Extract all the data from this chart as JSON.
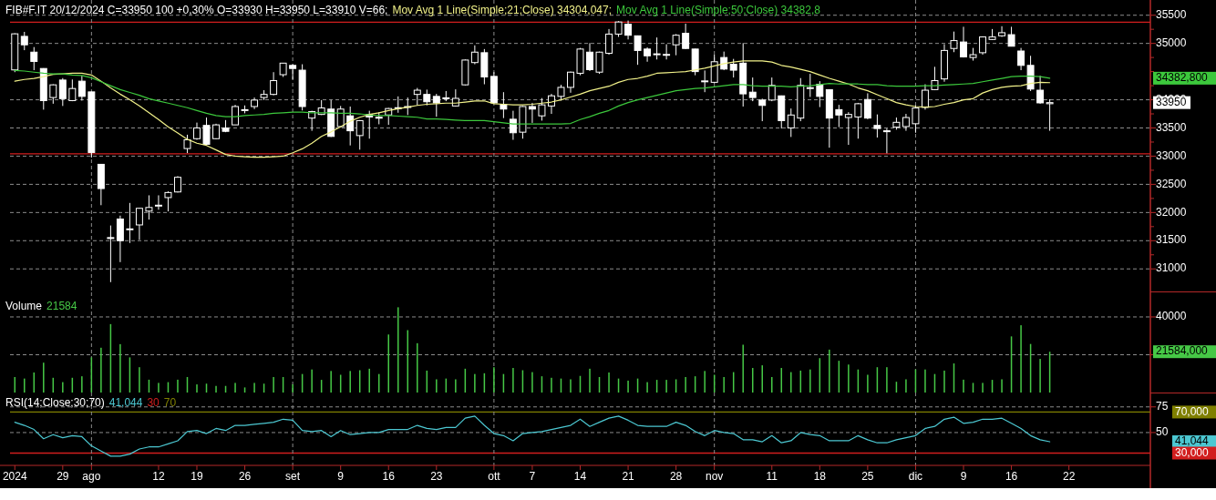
{
  "chart_data": [
    {
      "type": "candlestick",
      "title": "FIB#F.IT 20/12/2024 C=33950 100 +0,30% O=33930 H=33950 L=33910 V=66;",
      "categories": [
        "2024",
        null,
        null,
        null,
        null,
        "29",
        null,
        null,
        "ago",
        null,
        null,
        null,
        null,
        null,
        null,
        "12",
        null,
        null,
        null,
        "19",
        null,
        null,
        null,
        null,
        "26",
        null,
        null,
        null,
        null,
        "set",
        null,
        null,
        null,
        null,
        "9",
        null,
        null,
        null,
        null,
        "16",
        null,
        null,
        null,
        null,
        "23",
        null,
        null,
        null,
        null,
        null,
        "ott",
        null,
        null,
        null,
        "7",
        null,
        null,
        null,
        null,
        "14",
        null,
        null,
        null,
        null,
        "21",
        null,
        null,
        null,
        null,
        "28",
        null,
        null,
        null,
        "nov",
        null,
        null,
        null,
        null,
        null,
        "11",
        null,
        null,
        null,
        null,
        "18",
        null,
        null,
        null,
        null,
        "25",
        null,
        null,
        null,
        null,
        "dic",
        null,
        null,
        null,
        null,
        "9",
        null,
        null,
        null,
        null,
        "16",
        null,
        null,
        null,
        null,
        null,
        "22",
        null,
        null,
        null,
        null,
        null,
        null,
        null,
        null
      ],
      "series": [
        {
          "color": "#ffffff",
          "ohlc": [
            [
              34530,
              35180,
              34490,
              35170
            ],
            [
              35125,
              35205,
              34880,
              34975
            ],
            [
              34845,
              34935,
              34525,
              34680
            ],
            [
              34555,
              34560,
              33825,
              33985
            ],
            [
              34040,
              34275,
              33930,
              34265
            ],
            [
              34350,
              34385,
              33890,
              34020
            ],
            [
              33985,
              34360,
              33975,
              34200
            ],
            [
              34330,
              34425,
              33985,
              34060
            ],
            [
              34140,
              34145,
              32975,
              33065
            ],
            [
              32855,
              32860,
              32130,
              32425
            ],
            [
              31555,
              31770,
              30765,
              31550
            ],
            [
              31885,
              31945,
              31120,
              31500
            ],
            [
              31705,
              32170,
              31460,
              31710
            ],
            [
              31780,
              32085,
              31515,
              32075
            ],
            [
              32025,
              32305,
              31875,
              32090
            ],
            [
              32120,
              32305,
              32050,
              32130
            ],
            [
              32265,
              32375,
              32020,
              32355
            ],
            [
              32365,
              32645,
              32355,
              32625
            ],
            [
              33135,
              33380,
              33055,
              33290
            ],
            [
              33310,
              33595,
              33290,
              33500
            ],
            [
              33545,
              33685,
              33200,
              33210
            ],
            [
              33310,
              33575,
              33300,
              33555
            ],
            [
              33500,
              33640,
              33425,
              33440
            ],
            [
              33555,
              33910,
              33555,
              33880
            ],
            [
              33820,
              33900,
              33760,
              33825
            ],
            [
              33880,
              34040,
              33835,
              33995
            ],
            [
              34040,
              34170,
              33995,
              34095
            ],
            [
              34095,
              34490,
              34080,
              34340
            ],
            [
              34445,
              34650,
              34405,
              34650
            ],
            [
              34610,
              34630,
              34360,
              34555
            ],
            [
              34525,
              34630,
              33810,
              33880
            ],
            [
              33675,
              33805,
              33450,
              33790
            ],
            [
              33740,
              33995,
              33730,
              33855
            ],
            [
              33835,
              33995,
              33340,
              33350
            ],
            [
              33525,
              33890,
              33515,
              33835
            ],
            [
              33715,
              33880,
              33190,
              33450
            ],
            [
              33365,
              33640,
              33115,
              33630
            ],
            [
              33740,
              33805,
              33310,
              33695
            ],
            [
              33690,
              33780,
              33565,
              33685
            ],
            [
              33730,
              33855,
              33555,
              33845
            ],
            [
              33860,
              34060,
              33770,
              33855
            ],
            [
              33870,
              34040,
              33730,
              33880
            ],
            [
              34095,
              34210,
              33900,
              34170
            ],
            [
              34095,
              34180,
              33900,
              33965
            ],
            [
              34060,
              34105,
              33700,
              33945
            ],
            [
              34030,
              34155,
              33975,
              34035
            ],
            [
              33890,
              34185,
              33880,
              34025
            ],
            [
              34265,
              34715,
              34255,
              34705
            ],
            [
              34660,
              34965,
              34630,
              34845
            ],
            [
              34835,
              34900,
              34275,
              34405
            ],
            [
              34415,
              34490,
              33930,
              33945
            ],
            [
              33915,
              34135,
              33675,
              33835
            ],
            [
              33655,
              33805,
              33290,
              33415
            ],
            [
              33425,
              33890,
              33310,
              33880
            ],
            [
              33880,
              33945,
              33590,
              33835
            ],
            [
              33715,
              34030,
              33630,
              33910
            ],
            [
              33890,
              34105,
              33750,
              34070
            ],
            [
              34060,
              34265,
              33985,
              34220
            ],
            [
              34220,
              34500,
              34125,
              34490
            ],
            [
              34470,
              34920,
              34435,
              34900
            ],
            [
              34845,
              35005,
              34510,
              34535
            ],
            [
              34490,
              34855,
              34460,
              34845
            ],
            [
              34825,
              35255,
              34800,
              35165
            ],
            [
              35165,
              35395,
              35115,
              35380
            ],
            [
              35340,
              35405,
              35070,
              35145
            ],
            [
              35135,
              35140,
              34620,
              34875
            ],
            [
              34900,
              34930,
              34675,
              34780
            ],
            [
              34810,
              35105,
              34715,
              34815
            ],
            [
              34800,
              34985,
              34715,
              34805
            ],
            [
              34975,
              35165,
              34790,
              35145
            ],
            [
              35180,
              35350,
              34900,
              34910
            ],
            [
              34900,
              34905,
              34435,
              34500
            ],
            [
              34330,
              34520,
              34135,
              34335
            ],
            [
              34310,
              34800,
              34295,
              34675
            ],
            [
              34750,
              34855,
              34525,
              34545
            ],
            [
              34630,
              34725,
              34395,
              34525
            ],
            [
              34650,
              35005,
              33880,
              34105
            ],
            [
              34135,
              34395,
              33975,
              34040
            ],
            [
              33995,
              34020,
              33620,
              33900
            ],
            [
              33995,
              34395,
              33975,
              34255
            ],
            [
              34070,
              34075,
              33490,
              33630
            ],
            [
              33500,
              33845,
              33340,
              33730
            ],
            [
              33675,
              34385,
              33620,
              34255
            ],
            [
              34210,
              34460,
              34050,
              34215
            ],
            [
              34275,
              34330,
              33870,
              34060
            ],
            [
              34180,
              34185,
              33150,
              33675
            ],
            [
              33825,
              33910,
              33515,
              33730
            ],
            [
              33685,
              33780,
              33200,
              33740
            ],
            [
              33695,
              33945,
              33310,
              33930
            ],
            [
              34005,
              34115,
              33655,
              33675
            ],
            [
              33545,
              33740,
              33330,
              33490
            ],
            [
              33450,
              33490,
              33050,
              33445
            ],
            [
              33515,
              33685,
              33470,
              33600
            ],
            [
              33525,
              33750,
              33450,
              33685
            ],
            [
              33575,
              33900,
              33415,
              33855
            ],
            [
              33865,
              34275,
              33825,
              34170
            ],
            [
              34180,
              34585,
              34170,
              34340
            ],
            [
              34370,
              34985,
              34320,
              34875
            ],
            [
              34910,
              35210,
              34845,
              35050
            ],
            [
              35025,
              35295,
              34750,
              34760
            ],
            [
              34750,
              34920,
              34695,
              34800
            ],
            [
              34835,
              35125,
              34800,
              35115
            ],
            [
              35070,
              35255,
              35060,
              35115
            ],
            [
              35135,
              35305,
              35115,
              35190
            ],
            [
              35155,
              35295,
              34950,
              34950
            ],
            [
              34865,
              34920,
              34525,
              34610
            ],
            [
              34610,
              34780,
              34155,
              34190
            ],
            [
              34170,
              34425,
              33930,
              33945
            ],
            [
              33930,
              34010,
              33450,
              33950
            ],
            null,
            null,
            null,
            null,
            null,
            null,
            null,
            null,
            null,
            null
          ]
        },
        {
          "type": "line",
          "name": "Mov Avg 1 Line(Simple;21;Close) 34304,047;",
          "color": "#f2f28a",
          "values": [
            34330,
            34360,
            34380,
            34410,
            34450,
            34460,
            34470,
            34470,
            34440,
            34330,
            34210,
            34100,
            34000,
            33890,
            33770,
            33650,
            33520,
            33410,
            33300,
            33230,
            33190,
            33110,
            33030,
            33000,
            32990,
            32980,
            32980,
            32990,
            33000,
            33060,
            33130,
            33230,
            33350,
            33430,
            33520,
            33620,
            33690,
            33740,
            33770,
            33810,
            33840,
            33870,
            33900,
            33920,
            33930,
            33940,
            33940,
            33960,
            33980,
            33980,
            33930,
            33920,
            33910,
            33910,
            33920,
            33940,
            33960,
            34000,
            34050,
            34100,
            34160,
            34200,
            34240,
            34310,
            34360,
            34380,
            34420,
            34470,
            34480,
            34490,
            34500,
            34530,
            34560,
            34600,
            34640,
            34670,
            34690,
            34690,
            34690,
            34670,
            34610,
            34580,
            34540,
            34500,
            34440,
            34380,
            34330,
            34280,
            34210,
            34160,
            34090,
            34020,
            33950,
            33910,
            33880,
            33870,
            33880,
            33920,
            33950,
            34000,
            34020,
            34120,
            34180,
            34220,
            34240,
            34250,
            34290,
            34310,
            34304.047,
            null,
            null,
            null,
            null,
            null,
            null,
            null,
            null,
            null,
            null
          ]
        },
        {
          "type": "line",
          "name": "Mov Avg 1 Line(Simple;50;Close) 34382,8",
          "color": "#3cc83c",
          "values": [
            34520,
            34510,
            34490,
            34470,
            34460,
            34460,
            34440,
            34430,
            34390,
            34320,
            34250,
            34180,
            34130,
            34080,
            34020,
            33980,
            33940,
            33900,
            33860,
            33810,
            33760,
            33720,
            33700,
            33700,
            33720,
            33730,
            33740,
            33760,
            33770,
            33780,
            33780,
            33770,
            33770,
            33770,
            33760,
            33760,
            33750,
            33730,
            33720,
            33720,
            33710,
            33700,
            33690,
            33660,
            33660,
            33650,
            33640,
            33630,
            33630,
            33630,
            33610,
            33590,
            33570,
            33570,
            33570,
            33570,
            33570,
            33570,
            33580,
            33650,
            33700,
            33760,
            33810,
            33890,
            33950,
            34000,
            34040,
            34080,
            34120,
            34160,
            34180,
            34200,
            34210,
            34230,
            34250,
            34270,
            34270,
            34250,
            34240,
            34240,
            34240,
            34230,
            34240,
            34250,
            34270,
            34290,
            34280,
            34280,
            34280,
            34270,
            34270,
            34250,
            34240,
            34240,
            34240,
            34250,
            34250,
            34260,
            34270,
            34280,
            34290,
            34320,
            34350,
            34380,
            34410,
            34420,
            34420,
            34410,
            34382.8,
            null,
            null,
            null,
            null,
            null,
            null,
            null,
            null,
            null,
            null
          ]
        }
      ],
      "ylim": [
        30600,
        35770
      ],
      "yticks": [
        31000,
        {
          "value": 31250,
          "label": null
        },
        31500,
        {
          "value": 31750,
          "label": null
        },
        32000,
        {
          "value": 32250,
          "label": null
        },
        32500,
        {
          "value": 32750,
          "label": null
        },
        33000,
        {
          "value": 33250,
          "label": null
        },
        33500,
        {
          "value": 33750,
          "label": null
        },
        34000,
        {
          "value": 34250,
          "label": null
        },
        {
          "value": 34500,
          "label": null
        },
        {
          "value": 34750,
          "label": null
        },
        35000,
        {
          "value": 35250,
          "label": null
        },
        35500
      ],
      "grid": "y",
      "legend": "top left",
      "tick_labels": "y",
      "ref_lines": [
        {
          "axis": "y",
          "value": 35375,
          "color": "#d21e1e",
          "line_style": "solid"
        },
        {
          "axis": "y",
          "value": 33040,
          "color": "#d21e1e",
          "line_style": "solid"
        },
        {
          "axis": "x",
          "value": "ago",
          "color": "#8c8c8c",
          "line_style": "dashed"
        },
        {
          "axis": "x",
          "value": "set",
          "color": "#8c8c8c",
          "line_style": "dashed"
        },
        {
          "axis": "x",
          "value": "ott",
          "color": "#8c8c8c",
          "line_style": "dashed"
        },
        {
          "axis": "x",
          "value": "nov",
          "color": "#8c8c8c",
          "line_style": "dashed"
        },
        {
          "axis": "x",
          "value": "dic",
          "color": "#8c8c8c",
          "line_style": "dashed"
        }
      ],
      "annotations": [
        "34382,800",
        "33950"
      ]
    },
    {
      "type": "bar",
      "title": "Volume",
      "categories": [
        "2024",
        null,
        null,
        null,
        null,
        "29",
        null,
        null,
        "ago",
        null,
        null,
        null,
        null,
        null,
        null,
        "12",
        null,
        null,
        null,
        "19",
        null,
        null,
        null,
        null,
        "26",
        null,
        null,
        null,
        null,
        "set",
        null,
        null,
        null,
        null,
        "9",
        null,
        null,
        null,
        null,
        "16",
        null,
        null,
        null,
        null,
        "23",
        null,
        null,
        null,
        null,
        null,
        "ott",
        null,
        null,
        null,
        "7",
        null,
        null,
        null,
        null,
        "14",
        null,
        null,
        null,
        null,
        "21",
        null,
        null,
        null,
        null,
        "28",
        null,
        null,
        null,
        "nov",
        null,
        null,
        null,
        null,
        null,
        "11",
        null,
        null,
        null,
        null,
        "18",
        null,
        null,
        null,
        null,
        "25",
        null,
        null,
        null,
        null,
        "dic",
        null,
        null,
        null,
        null,
        "9",
        null,
        null,
        null,
        null,
        "16",
        null,
        null,
        null,
        null,
        null,
        "22",
        null,
        null,
        null,
        null,
        null,
        null,
        null,
        null
      ],
      "series": [
        {
          "name": "21584",
          "color": "#46c846",
          "values": [
            8200,
            7400,
            10600,
            15800,
            7800,
            5500,
            7800,
            8600,
            18600,
            23700,
            36200,
            25600,
            18600,
            13400,
            6800,
            5100,
            5500,
            6800,
            8200,
            4300,
            4700,
            3500,
            3500,
            5100,
            2700,
            5100,
            4700,
            8200,
            8200,
            4300,
            9800,
            12200,
            6700,
            11400,
            9400,
            11400,
            11800,
            12600,
            9800,
            30700,
            45100,
            33000,
            26100,
            11600,
            7000,
            7400,
            7000,
            12600,
            9800,
            10200,
            13400,
            9800,
            13000,
            11800,
            10800,
            8600,
            7800,
            7400,
            7000,
            8800,
            12600,
            8200,
            10600,
            7400,
            6300,
            7400,
            5500,
            6700,
            6700,
            7000,
            8200,
            8600,
            11400,
            9400,
            8200,
            10800,
            25300,
            13000,
            14400,
            8200,
            13000,
            10800,
            11600,
            12200,
            18200,
            22700,
            16800,
            14800,
            12200,
            9400,
            13400,
            13400,
            5700,
            7000,
            12200,
            12200,
            9800,
            11600,
            15400,
            6800,
            5100,
            5100,
            6700,
            7000,
            29700,
            35600,
            25700,
            17800,
            21584,
            null,
            null,
            null,
            null,
            null,
            null,
            null,
            null,
            null,
            null
          ]
        }
      ],
      "ylim": [
        0,
        53000
      ],
      "yticks": [
        20000,
        40000
      ],
      "grid": "y",
      "legend": "top left",
      "tick_labels": "y",
      "ref_lines": [
        {
          "axis": "x",
          "value": "ago",
          "color": "#8c8c8c",
          "line_style": "dashed"
        },
        {
          "axis": "x",
          "value": "set",
          "color": "#8c8c8c",
          "line_style": "dashed"
        },
        {
          "axis": "x",
          "value": "ott",
          "color": "#8c8c8c",
          "line_style": "dashed"
        },
        {
          "axis": "x",
          "value": "nov",
          "color": "#8c8c8c",
          "line_style": "dashed"
        },
        {
          "axis": "x",
          "value": "dic",
          "color": "#8c8c8c",
          "line_style": "dashed"
        }
      ],
      "annotations": [
        "21584,000"
      ]
    },
    {
      "type": "line",
      "title": "RSI(14;Close;30;70)",
      "categories": [
        "2024",
        null,
        null,
        null,
        null,
        "29",
        null,
        null,
        "ago",
        null,
        null,
        null,
        null,
        null,
        null,
        "12",
        null,
        null,
        null,
        "19",
        null,
        null,
        null,
        null,
        "26",
        null,
        null,
        null,
        null,
        "set",
        null,
        null,
        null,
        null,
        "9",
        null,
        null,
        null,
        null,
        "16",
        null,
        null,
        null,
        null,
        "23",
        null,
        null,
        null,
        null,
        null,
        "ott",
        null,
        null,
        null,
        "7",
        null,
        null,
        null,
        null,
        "14",
        null,
        null,
        null,
        null,
        "21",
        null,
        null,
        null,
        null,
        "28",
        null,
        null,
        null,
        "nov",
        null,
        null,
        null,
        null,
        null,
        "11",
        null,
        null,
        null,
        null,
        "18",
        null,
        null,
        null,
        null,
        "25",
        null,
        null,
        null,
        null,
        "dic",
        null,
        null,
        null,
        null,
        "9",
        null,
        null,
        null,
        null,
        "16",
        null,
        null,
        null,
        null,
        null,
        "22",
        null,
        null,
        null,
        null,
        null,
        null,
        null,
        null
      ],
      "series": [
        {
          "name": "41,044",
          "color": "#4cc8d2",
          "values": [
            60,
            57,
            53,
            44,
            48,
            45,
            47,
            46,
            37,
            32,
            27,
            27,
            29,
            34,
            36,
            36,
            39,
            42,
            51,
            52,
            49,
            54,
            52,
            57,
            57,
            58,
            59,
            60,
            63,
            62,
            52,
            51,
            52,
            46,
            52,
            48,
            49,
            50,
            50,
            53,
            53,
            53,
            57,
            54,
            53,
            55,
            55,
            64,
            66,
            57,
            49,
            47,
            42,
            49,
            50,
            51,
            53,
            55,
            57,
            63,
            56,
            60,
            64,
            66,
            62,
            57,
            56,
            56,
            56,
            60,
            57,
            51,
            47,
            52,
            50,
            49,
            43,
            43,
            41,
            47,
            40,
            42,
            50,
            48,
            47,
            42,
            42,
            42,
            47,
            43,
            40,
            40,
            43,
            45,
            47,
            54,
            56,
            63,
            65,
            59,
            60,
            63,
            63,
            64,
            59,
            54,
            47,
            43,
            41.044,
            null,
            null,
            null,
            null,
            null,
            null,
            null,
            null,
            null,
            null
          ]
        }
      ],
      "ylim": [
        18,
        89
      ],
      "yticks": [
        50,
        75
      ],
      "grid": "y",
      "legend": "top left",
      "ref_lines": [
        {
          "axis": "y",
          "value": 30,
          "color": "#d21e1e",
          "line_style": "solid"
        },
        {
          "axis": "y",
          "value": 70,
          "color": "#808000",
          "line_style": "solid"
        },
        {
          "axis": "x",
          "value": "ago",
          "color": "#8c8c8c",
          "line_style": "dashed"
        },
        {
          "axis": "x",
          "value": "set",
          "color": "#8c8c8c",
          "line_style": "dashed"
        },
        {
          "axis": "x",
          "value": "ott",
          "color": "#8c8c8c",
          "line_style": "dashed"
        },
        {
          "axis": "x",
          "value": "nov",
          "color": "#8c8c8c",
          "line_style": "dashed"
        },
        {
          "axis": "x",
          "value": "dic",
          "color": "#8c8c8c",
          "line_style": "dashed"
        }
      ],
      "annotations": [
        "30",
        "70",
        "70,000",
        "41,044",
        "30,000"
      ]
    }
  ]
}
